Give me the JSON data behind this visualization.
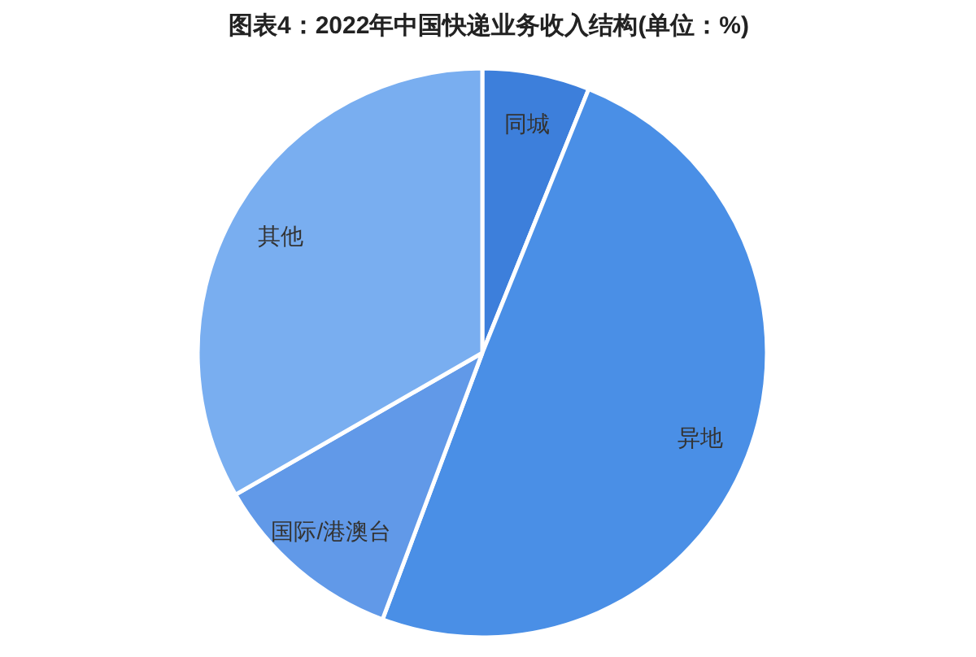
{
  "chart_data": {
    "type": "pie",
    "title": "图表4：2022年中国快递业务收入结构(单位：%)",
    "categories": [
      "同城",
      "异地",
      "国际/港澳台",
      "其他"
    ],
    "values": [
      6.1,
      49.6,
      11.0,
      33.3
    ],
    "colors": [
      "#3d7fdb",
      "#4a8fe6",
      "#6199e8",
      "#79aef0"
    ]
  }
}
